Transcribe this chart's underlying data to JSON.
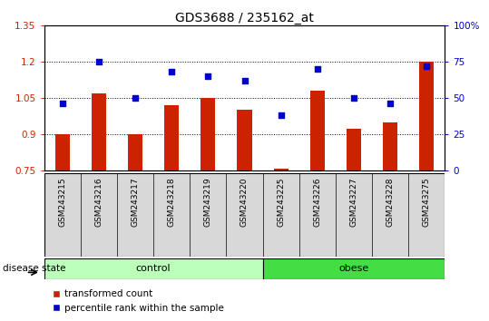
{
  "title": "GDS3688 / 235162_at",
  "samples": [
    "GSM243215",
    "GSM243216",
    "GSM243217",
    "GSM243218",
    "GSM243219",
    "GSM243220",
    "GSM243225",
    "GSM243226",
    "GSM243227",
    "GSM243228",
    "GSM243275"
  ],
  "red_values": [
    0.9,
    1.07,
    0.9,
    1.02,
    1.05,
    1.0,
    0.755,
    1.08,
    0.92,
    0.95,
    1.2
  ],
  "blue_values": [
    46,
    75,
    50,
    68,
    65,
    62,
    38,
    70,
    50,
    46,
    72
  ],
  "ylim_left": [
    0.75,
    1.35
  ],
  "ylim_right": [
    0,
    100
  ],
  "yticks_left": [
    0.75,
    0.9,
    1.05,
    1.2,
    1.35
  ],
  "yticks_right": [
    0,
    25,
    50,
    75,
    100
  ],
  "ytick_labels_left": [
    "0.75",
    "0.9",
    "1.05",
    "1.2",
    "1.35"
  ],
  "ytick_labels_right": [
    "0",
    "25",
    "50",
    "75",
    "100%"
  ],
  "hlines": [
    0.9,
    1.05,
    1.2
  ],
  "bar_color": "#cc2200",
  "dot_color": "#0000cc",
  "bar_bottom": 0.75,
  "control_count": 6,
  "obese_count": 5,
  "control_color": "#bbffbb",
  "obese_color": "#44dd44",
  "group_label_control": "control",
  "group_label_obese": "obese",
  "disease_state_label": "disease state",
  "legend_red": "transformed count",
  "legend_blue": "percentile rank within the sample",
  "bar_width": 0.4,
  "title_fontsize": 10,
  "tick_fontsize": 7.5,
  "sample_fontsize": 6.5
}
